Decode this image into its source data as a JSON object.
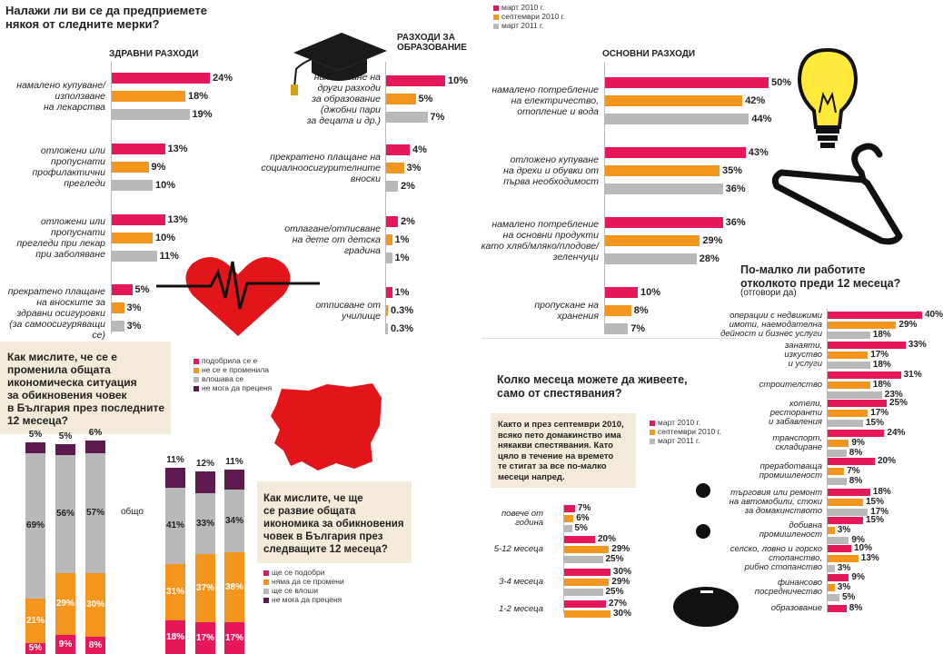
{
  "colors": {
    "pink": "#e6185a",
    "orange": "#f4951f",
    "gray": "#b9b9bb",
    "purple": "#5c1a4e",
    "beige": "#f3ead9",
    "red": "#e3151b"
  },
  "main_question": [
    "Налажи ли ви се да предприемете",
    "някоя от следните мерки?"
  ],
  "top_legend": [
    "март 2010 г.",
    "септември 2010 г.",
    "март 2011 г."
  ],
  "sections": {
    "health": "ЗДРАВНИ РАЗХОДИ",
    "education": [
      "РАЗХОДИ ЗА",
      "ОБРАЗОВАНИЕ"
    ],
    "basic": "ОСНОВНИ РАЗХОДИ"
  },
  "chart_data": [
    {
      "type": "bar",
      "id": "health",
      "title": "ЗДРАВНИ РАЗХОДИ",
      "series_names": [
        "март 2010 г.",
        "септември 2010 г.",
        "март 2011 г."
      ],
      "groups": [
        {
          "label": [
            "намалено купуване/",
            "използване",
            "на лекарства"
          ],
          "values": [
            24,
            18,
            19
          ],
          "labels": [
            "24%",
            "18%",
            "19%"
          ]
        },
        {
          "label": [
            "отложени или",
            "пропуснати",
            "профилактични",
            "прегледи"
          ],
          "values": [
            13,
            9,
            10
          ],
          "labels": [
            "13%",
            "9%",
            "10%"
          ]
        },
        {
          "label": [
            "отложени или",
            "пропуснати",
            "прегледи при лекар",
            "при заболяване"
          ],
          "values": [
            13,
            10,
            11
          ],
          "labels": [
            "13%",
            "10%",
            "11%"
          ]
        },
        {
          "label": [
            "прекратено плащане",
            "на вноските за",
            "здравни осигуровки",
            "(за самоосигуряващи се)"
          ],
          "values": [
            5,
            3,
            3
          ],
          "labels": [
            "5%",
            "3%",
            "3%"
          ]
        }
      ]
    },
    {
      "type": "bar",
      "id": "education",
      "title": "РАЗХОДИ ЗА ОБРАЗОВАНИЕ",
      "groups": [
        {
          "label": [
            "намаляване на",
            "други разходи",
            "за образование",
            "(джобни пари",
            "за децата и др.)"
          ],
          "values": [
            10,
            5,
            7
          ],
          "labels": [
            "10%",
            "5%",
            "7%"
          ]
        },
        {
          "label": [
            "прекратено плащане на",
            "социалноосигурителните",
            "вноски"
          ],
          "values": [
            4,
            3,
            2
          ],
          "labels": [
            "4%",
            "3%",
            "2%"
          ]
        },
        {
          "label": [
            "отлагане/отписване",
            "на дете от детска",
            "градина"
          ],
          "values": [
            2,
            1,
            1
          ],
          "labels": [
            "2%",
            "1%",
            "1%"
          ]
        },
        {
          "label": [
            "отписване от",
            "училище"
          ],
          "values": [
            1,
            0.3,
            0.3
          ],
          "labels": [
            "1%",
            "0.3%",
            "0.3%"
          ]
        }
      ]
    },
    {
      "type": "bar",
      "id": "basic",
      "title": "ОСНОВНИ РАЗХОДИ",
      "groups": [
        {
          "label": [
            "намалено потребление",
            "на електричество,",
            "отопление и вода"
          ],
          "values": [
            50,
            42,
            44
          ],
          "labels": [
            "50%",
            "42%",
            "44%"
          ]
        },
        {
          "label": [
            "отложено купуване",
            "на дрехи и обувки от",
            "първа необходимост"
          ],
          "values": [
            43,
            35,
            36
          ],
          "labels": [
            "43%",
            "35%",
            "36%"
          ]
        },
        {
          "label": [
            "намалено потребление",
            "на основни продукти",
            "като хляб/мляко/плодове/",
            "зеленчуци"
          ],
          "values": [
            36,
            29,
            28
          ],
          "labels": [
            "36%",
            "29%",
            "28%"
          ]
        },
        {
          "label": [
            "пропускане на",
            "хранения"
          ],
          "values": [
            10,
            8,
            7
          ],
          "labels": [
            "10%",
            "8%",
            "7%"
          ]
        }
      ]
    },
    {
      "type": "bar",
      "id": "work",
      "title": "По-малко ли работите отколкото преди 12 месеца?",
      "subtitle": "(отговори да)",
      "groups": [
        {
          "label": [
            "операции с недвижими",
            "имоти, наемодателна",
            "дейност и бизнес услуги"
          ],
          "values": [
            40,
            29,
            18
          ],
          "labels": [
            "40%",
            "29%",
            "18%"
          ]
        },
        {
          "label": [
            "занаяти,",
            "изкуство",
            "и услуги"
          ],
          "values": [
            33,
            17,
            18
          ],
          "labels": [
            "33%",
            "17%",
            "18%"
          ]
        },
        {
          "label": [
            "строителство"
          ],
          "values": [
            31,
            18,
            23
          ],
          "labels": [
            "31%",
            "18%",
            "23%"
          ]
        },
        {
          "label": [
            "хотели,",
            "ресторанти",
            "и забавления"
          ],
          "values": [
            25,
            17,
            15
          ],
          "labels": [
            "25%",
            "17%",
            "15%"
          ]
        },
        {
          "label": [
            "транспорт,",
            "складиране"
          ],
          "values": [
            24,
            9,
            8
          ],
          "labels": [
            "24%",
            "9%",
            "8%"
          ]
        },
        {
          "label": [
            "преработваща",
            "промишленост"
          ],
          "values": [
            20,
            7,
            8
          ],
          "labels": [
            "20%",
            "7%",
            "8%"
          ]
        },
        {
          "label": [
            "търговия или ремонт",
            "на автомобили, стоки",
            "за домакинството"
          ],
          "values": [
            18,
            15,
            17
          ],
          "labels": [
            "18%",
            "15%",
            "17%"
          ]
        },
        {
          "label": [
            "добивна",
            "промишленост"
          ],
          "values": [
            15,
            3,
            9
          ],
          "labels": [
            "15%",
            "3%",
            "9%"
          ]
        },
        {
          "label": [
            "селско, ловно и горско",
            "стопанство,",
            "рибно стопанство"
          ],
          "values": [
            10,
            13,
            3
          ],
          "labels": [
            "10%",
            "13%",
            "3%"
          ]
        },
        {
          "label": [
            "финансово",
            "посредничество"
          ],
          "values": [
            9,
            3,
            5
          ],
          "labels": [
            "9%",
            "3%",
            "5%"
          ]
        },
        {
          "label": [
            "образование"
          ],
          "values": [
            8
          ],
          "labels": [
            "8%"
          ]
        }
      ]
    },
    {
      "type": "bar",
      "id": "savings",
      "title": "Колко месеца можете да живеете, само от спестявания?",
      "groups": [
        {
          "label": [
            "повече от",
            "година"
          ],
          "values": [
            7,
            6,
            5
          ],
          "labels": [
            "7%",
            "6%",
            "5%"
          ]
        },
        {
          "label": [
            "5-12 месеца"
          ],
          "values": [
            20,
            29,
            25
          ],
          "labels": [
            "20%",
            "29%",
            "25%"
          ]
        },
        {
          "label": [
            "3-4 месеца"
          ],
          "values": [
            30,
            29,
            25
          ],
          "labels": [
            "30%",
            "29%",
            "25%"
          ]
        },
        {
          "label": [
            "1-2 месеца"
          ],
          "values": [
            27,
            30
          ],
          "labels": [
            "27%",
            "30%"
          ]
        }
      ]
    },
    {
      "type": "stacked-bar",
      "id": "past12",
      "series_names": [
        "подобрила се е",
        "не се е променила",
        "влошава се",
        "не мога да преценя"
      ],
      "columns": [
        {
          "values": [
            5,
            21,
            69,
            5
          ],
          "labels": [
            "5%",
            "21%",
            "69%",
            "5%"
          ]
        },
        {
          "values": [
            9,
            29,
            56,
            5
          ],
          "labels": [
            "9%",
            "29%",
            "56%",
            "5%"
          ]
        },
        {
          "values": [
            8,
            30,
            57,
            6
          ],
          "labels": [
            "8%",
            "30%",
            "57%",
            "6%"
          ]
        }
      ],
      "group_label": "общо"
    },
    {
      "type": "stacked-bar",
      "id": "next12",
      "series_names": [
        "ще се подобри",
        "няма да се промени",
        "ще се влоши",
        "не мога да преценя"
      ],
      "columns": [
        {
          "values": [
            18,
            31,
            41,
            11
          ],
          "labels": [
            "18%",
            "31%",
            "41%",
            "11%"
          ]
        },
        {
          "values": [
            17,
            37,
            33,
            12
          ],
          "labels": [
            "17%",
            "37%",
            "33%",
            "12%"
          ]
        },
        {
          "values": [
            17,
            38,
            34,
            11
          ],
          "labels": [
            "17%",
            "38%",
            "34%",
            "11%"
          ]
        }
      ]
    }
  ],
  "past12_question": [
    "Как мислите, че се е",
    "променила общата",
    "икономическа ситуация",
    "за обикновения човек",
    "в България през последните",
    "12 месеца?"
  ],
  "past12_legend": [
    "подобрила се е",
    "не се е променила",
    "влошава се",
    "не мога да преценя"
  ],
  "next12_question": [
    "Как мислите, че ще",
    "се развие общата",
    "икономика за обикновения",
    "човек в България през",
    "следващите 12 месеца?"
  ],
  "next12_legend": [
    "ще се подобри",
    "няма да се промени",
    "ще се влоши",
    "не мога да преценя"
  ],
  "work_title": [
    "По-малко ли работите",
    "отколкото преди 12 месеца?"
  ],
  "work_sub": "(отговори да)",
  "savings_title": [
    "Колко месеца можете да живеете,",
    "само от спестявания?"
  ],
  "savings_note": [
    "Както и през септември 2010,",
    "всяко пето домакинство има",
    "някакви спестявания. Като",
    "цяло в течение на времето",
    "те стигат за все по-малко",
    "месеци напред."
  ],
  "savings_legend": [
    "март 2010 г.",
    "септември 2010 г.",
    "март 2011 г."
  ],
  "group_label": "общо"
}
